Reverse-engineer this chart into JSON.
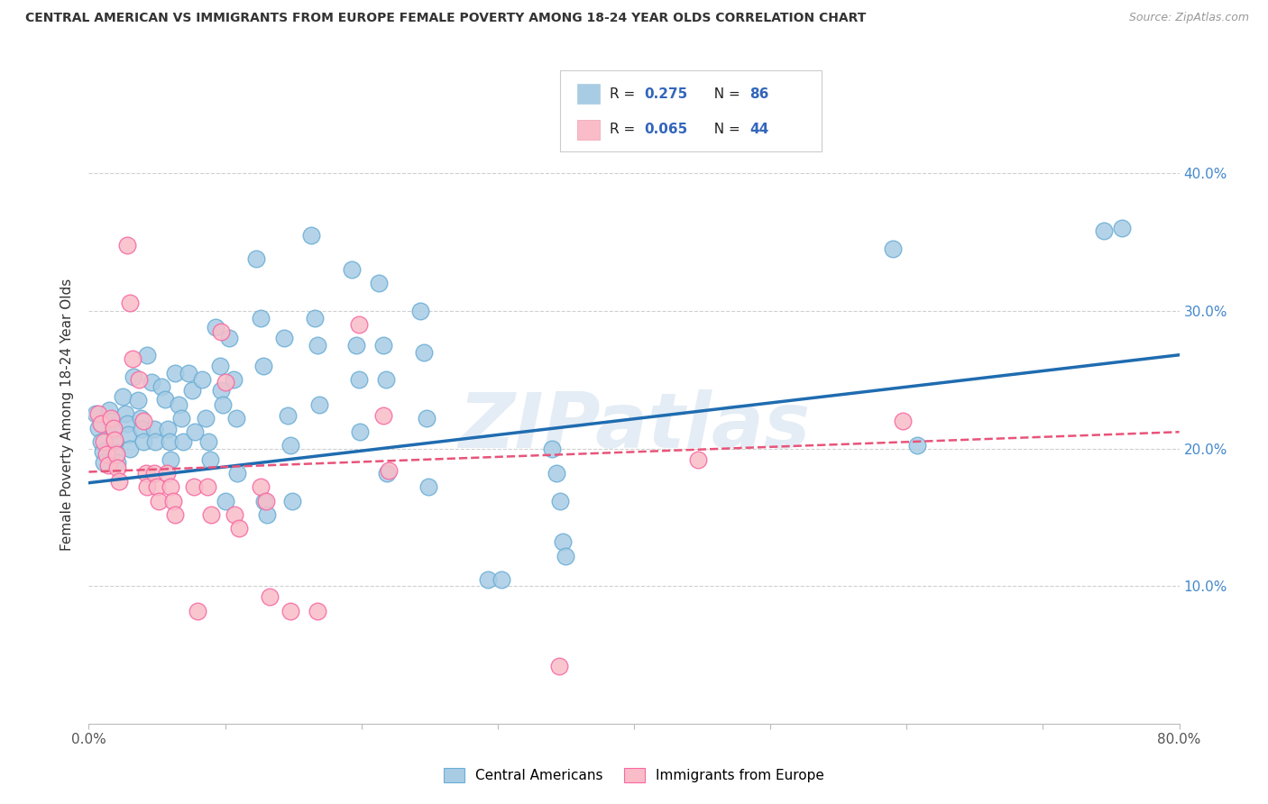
{
  "title": "CENTRAL AMERICAN VS IMMIGRANTS FROM EUROPE FEMALE POVERTY AMONG 18-24 YEAR OLDS CORRELATION CHART",
  "source": "Source: ZipAtlas.com",
  "ylabel": "Female Poverty Among 18-24 Year Olds",
  "xlim": [
    0.0,
    0.8
  ],
  "ylim": [
    0.0,
    0.45
  ],
  "blue_R": 0.275,
  "blue_N": 86,
  "pink_R": 0.065,
  "pink_N": 44,
  "blue_color": "#a8cce4",
  "pink_color": "#f9bcc8",
  "blue_edge_color": "#6baed6",
  "pink_edge_color": "#f768a1",
  "blue_line_color": "#1f6cb0",
  "pink_line_color": "#e8547a",
  "grid_color": "#d0d0d0",
  "watermark": "ZIPatlas",
  "blue_line_x": [
    0.0,
    0.8
  ],
  "blue_line_y": [
    0.175,
    0.268
  ],
  "pink_line_x": [
    0.0,
    0.8
  ],
  "pink_line_y": [
    0.183,
    0.212
  ],
  "blue_points": [
    [
      0.005,
      0.225
    ],
    [
      0.007,
      0.215
    ],
    [
      0.009,
      0.205
    ],
    [
      0.01,
      0.198
    ],
    [
      0.011,
      0.19
    ],
    [
      0.015,
      0.228
    ],
    [
      0.016,
      0.22
    ],
    [
      0.018,
      0.213
    ],
    [
      0.019,
      0.205
    ],
    [
      0.02,
      0.197
    ],
    [
      0.021,
      0.19
    ],
    [
      0.025,
      0.238
    ],
    [
      0.027,
      0.225
    ],
    [
      0.028,
      0.218
    ],
    [
      0.029,
      0.21
    ],
    [
      0.03,
      0.2
    ],
    [
      0.033,
      0.252
    ],
    [
      0.036,
      0.235
    ],
    [
      0.038,
      0.222
    ],
    [
      0.039,
      0.214
    ],
    [
      0.04,
      0.205
    ],
    [
      0.043,
      0.268
    ],
    [
      0.046,
      0.248
    ],
    [
      0.048,
      0.214
    ],
    [
      0.049,
      0.205
    ],
    [
      0.053,
      0.245
    ],
    [
      0.056,
      0.236
    ],
    [
      0.058,
      0.214
    ],
    [
      0.059,
      0.205
    ],
    [
      0.06,
      0.192
    ],
    [
      0.063,
      0.255
    ],
    [
      0.066,
      0.232
    ],
    [
      0.068,
      0.222
    ],
    [
      0.069,
      0.205
    ],
    [
      0.073,
      0.255
    ],
    [
      0.076,
      0.242
    ],
    [
      0.078,
      0.212
    ],
    [
      0.083,
      0.25
    ],
    [
      0.086,
      0.222
    ],
    [
      0.088,
      0.205
    ],
    [
      0.089,
      0.192
    ],
    [
      0.093,
      0.288
    ],
    [
      0.096,
      0.26
    ],
    [
      0.097,
      0.242
    ],
    [
      0.098,
      0.232
    ],
    [
      0.1,
      0.162
    ],
    [
      0.103,
      0.28
    ],
    [
      0.106,
      0.25
    ],
    [
      0.108,
      0.222
    ],
    [
      0.109,
      0.182
    ],
    [
      0.123,
      0.338
    ],
    [
      0.126,
      0.295
    ],
    [
      0.128,
      0.26
    ],
    [
      0.129,
      0.162
    ],
    [
      0.131,
      0.152
    ],
    [
      0.143,
      0.28
    ],
    [
      0.146,
      0.224
    ],
    [
      0.148,
      0.202
    ],
    [
      0.149,
      0.162
    ],
    [
      0.163,
      0.355
    ],
    [
      0.166,
      0.295
    ],
    [
      0.168,
      0.275
    ],
    [
      0.169,
      0.232
    ],
    [
      0.193,
      0.33
    ],
    [
      0.196,
      0.275
    ],
    [
      0.198,
      0.25
    ],
    [
      0.199,
      0.212
    ],
    [
      0.213,
      0.32
    ],
    [
      0.216,
      0.275
    ],
    [
      0.218,
      0.25
    ],
    [
      0.219,
      0.182
    ],
    [
      0.243,
      0.3
    ],
    [
      0.246,
      0.27
    ],
    [
      0.248,
      0.222
    ],
    [
      0.249,
      0.172
    ],
    [
      0.293,
      0.105
    ],
    [
      0.303,
      0.105
    ],
    [
      0.34,
      0.2
    ],
    [
      0.343,
      0.182
    ],
    [
      0.346,
      0.162
    ],
    [
      0.348,
      0.132
    ],
    [
      0.35,
      0.122
    ],
    [
      0.59,
      0.345
    ],
    [
      0.608,
      0.202
    ],
    [
      0.745,
      0.358
    ],
    [
      0.758,
      0.36
    ]
  ],
  "pink_points": [
    [
      0.007,
      0.225
    ],
    [
      0.009,
      0.218
    ],
    [
      0.011,
      0.205
    ],
    [
      0.013,
      0.196
    ],
    [
      0.014,
      0.188
    ],
    [
      0.016,
      0.222
    ],
    [
      0.018,
      0.215
    ],
    [
      0.019,
      0.206
    ],
    [
      0.02,
      0.196
    ],
    [
      0.021,
      0.186
    ],
    [
      0.022,
      0.176
    ],
    [
      0.028,
      0.348
    ],
    [
      0.03,
      0.306
    ],
    [
      0.032,
      0.265
    ],
    [
      0.037,
      0.25
    ],
    [
      0.04,
      0.22
    ],
    [
      0.042,
      0.182
    ],
    [
      0.043,
      0.172
    ],
    [
      0.048,
      0.182
    ],
    [
      0.05,
      0.172
    ],
    [
      0.051,
      0.162
    ],
    [
      0.057,
      0.182
    ],
    [
      0.06,
      0.172
    ],
    [
      0.062,
      0.162
    ],
    [
      0.063,
      0.152
    ],
    [
      0.077,
      0.172
    ],
    [
      0.08,
      0.082
    ],
    [
      0.087,
      0.172
    ],
    [
      0.09,
      0.152
    ],
    [
      0.097,
      0.285
    ],
    [
      0.1,
      0.248
    ],
    [
      0.107,
      0.152
    ],
    [
      0.11,
      0.142
    ],
    [
      0.126,
      0.172
    ],
    [
      0.13,
      0.162
    ],
    [
      0.133,
      0.092
    ],
    [
      0.148,
      0.082
    ],
    [
      0.168,
      0.082
    ],
    [
      0.198,
      0.29
    ],
    [
      0.216,
      0.224
    ],
    [
      0.22,
      0.184
    ],
    [
      0.345,
      0.042
    ],
    [
      0.447,
      0.192
    ],
    [
      0.597,
      0.22
    ]
  ]
}
